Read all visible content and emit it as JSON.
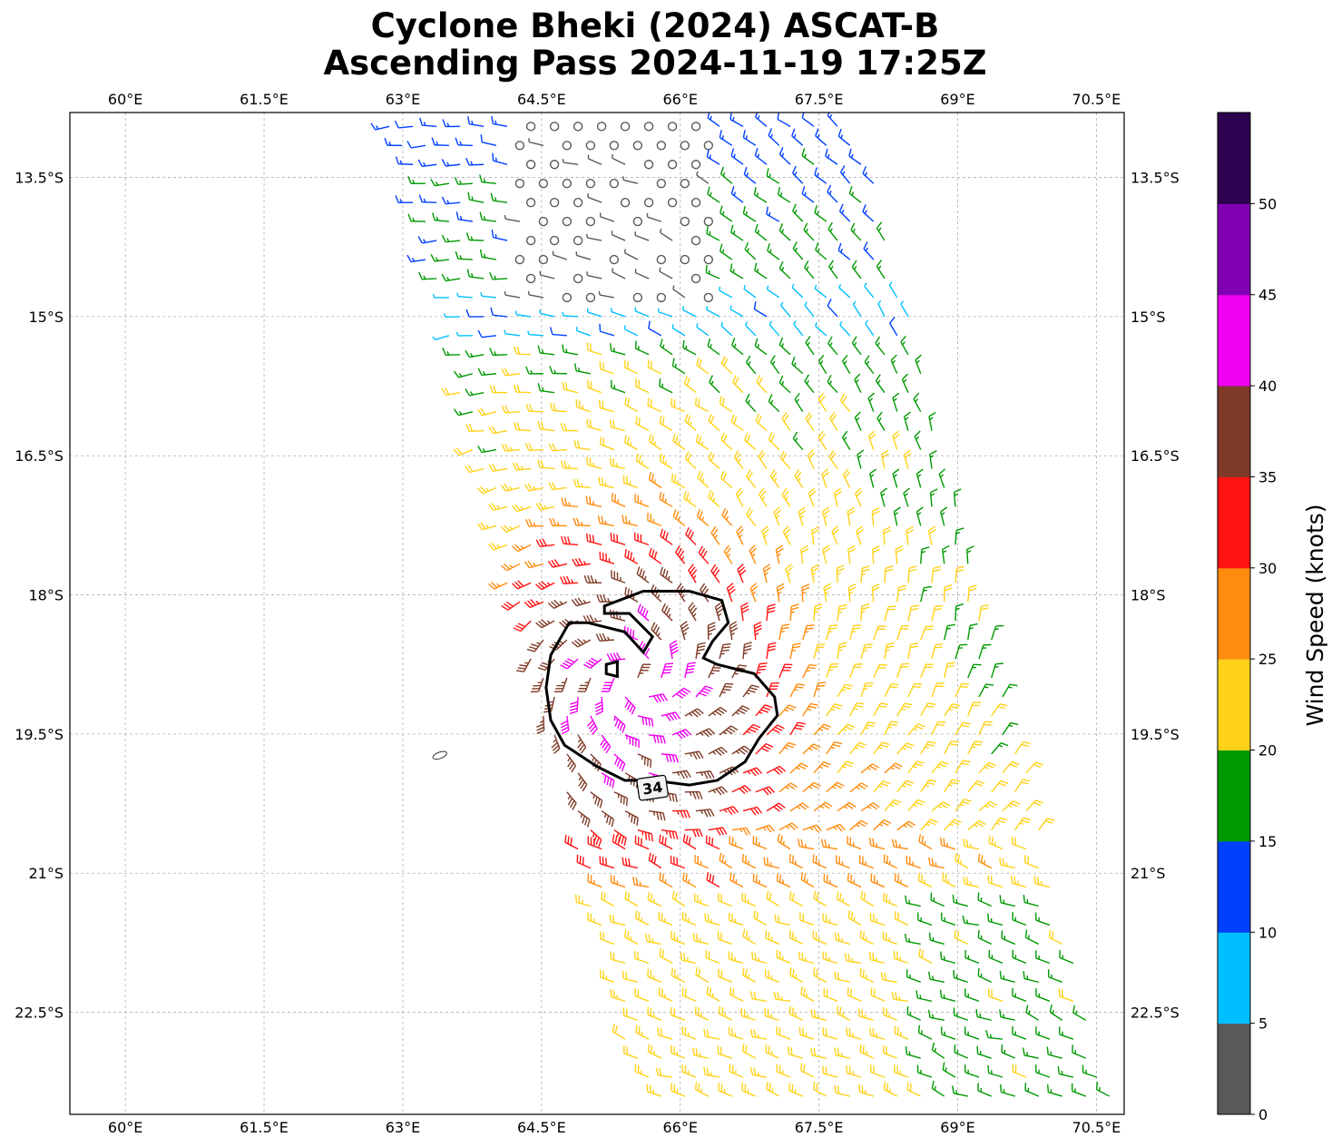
{
  "title": {
    "line1": "Cyclone Bheki (2024) ASCAT-B",
    "line2": "Ascending Pass 2024-11-19 17:25Z"
  },
  "axes": {
    "x_ticks": [
      "60°E",
      "61.5°E",
      "63°E",
      "64.5°E",
      "66°E",
      "67.5°E",
      "69°E",
      "70.5°E"
    ],
    "y_ticks": [
      "13.5°S",
      "15°S",
      "16.5°S",
      "18°S",
      "19.5°S",
      "21°S",
      "22.5°S"
    ]
  },
  "colorbar": {
    "label": "Wind Speed (knots)",
    "tick_labels": [
      "0",
      "5",
      "10",
      "15",
      "20",
      "25",
      "30",
      "35",
      "40",
      "45",
      "50"
    ],
    "colors": [
      "#595959",
      "#00bfff",
      "#0040ff",
      "#009900",
      "#ffd21a",
      "#ff8c0f",
      "#ff1414",
      "#7f3b27",
      "#f000f0",
      "#8200b4",
      "#2d0050"
    ]
  },
  "map": {
    "contour_label": "34",
    "swath_description_colors": {
      "calm": "#555555",
      "light": "#00bfff",
      "blue": "#0040ff",
      "green": "#009900",
      "yellow": "#ffd21a",
      "orange": "#ff8c0f",
      "red": "#ff1414",
      "brown": "#7f3b27",
      "magenta": "#f000f0",
      "purple": "#8200b4"
    }
  },
  "chart_data": {
    "type": "wind-barbs",
    "center_lon": 65.5,
    "center_lat": -18.9,
    "xlim": [
      59.4,
      70.8
    ],
    "ylim": [
      -23.6,
      -12.8
    ],
    "contour_level_kt": 34
  }
}
